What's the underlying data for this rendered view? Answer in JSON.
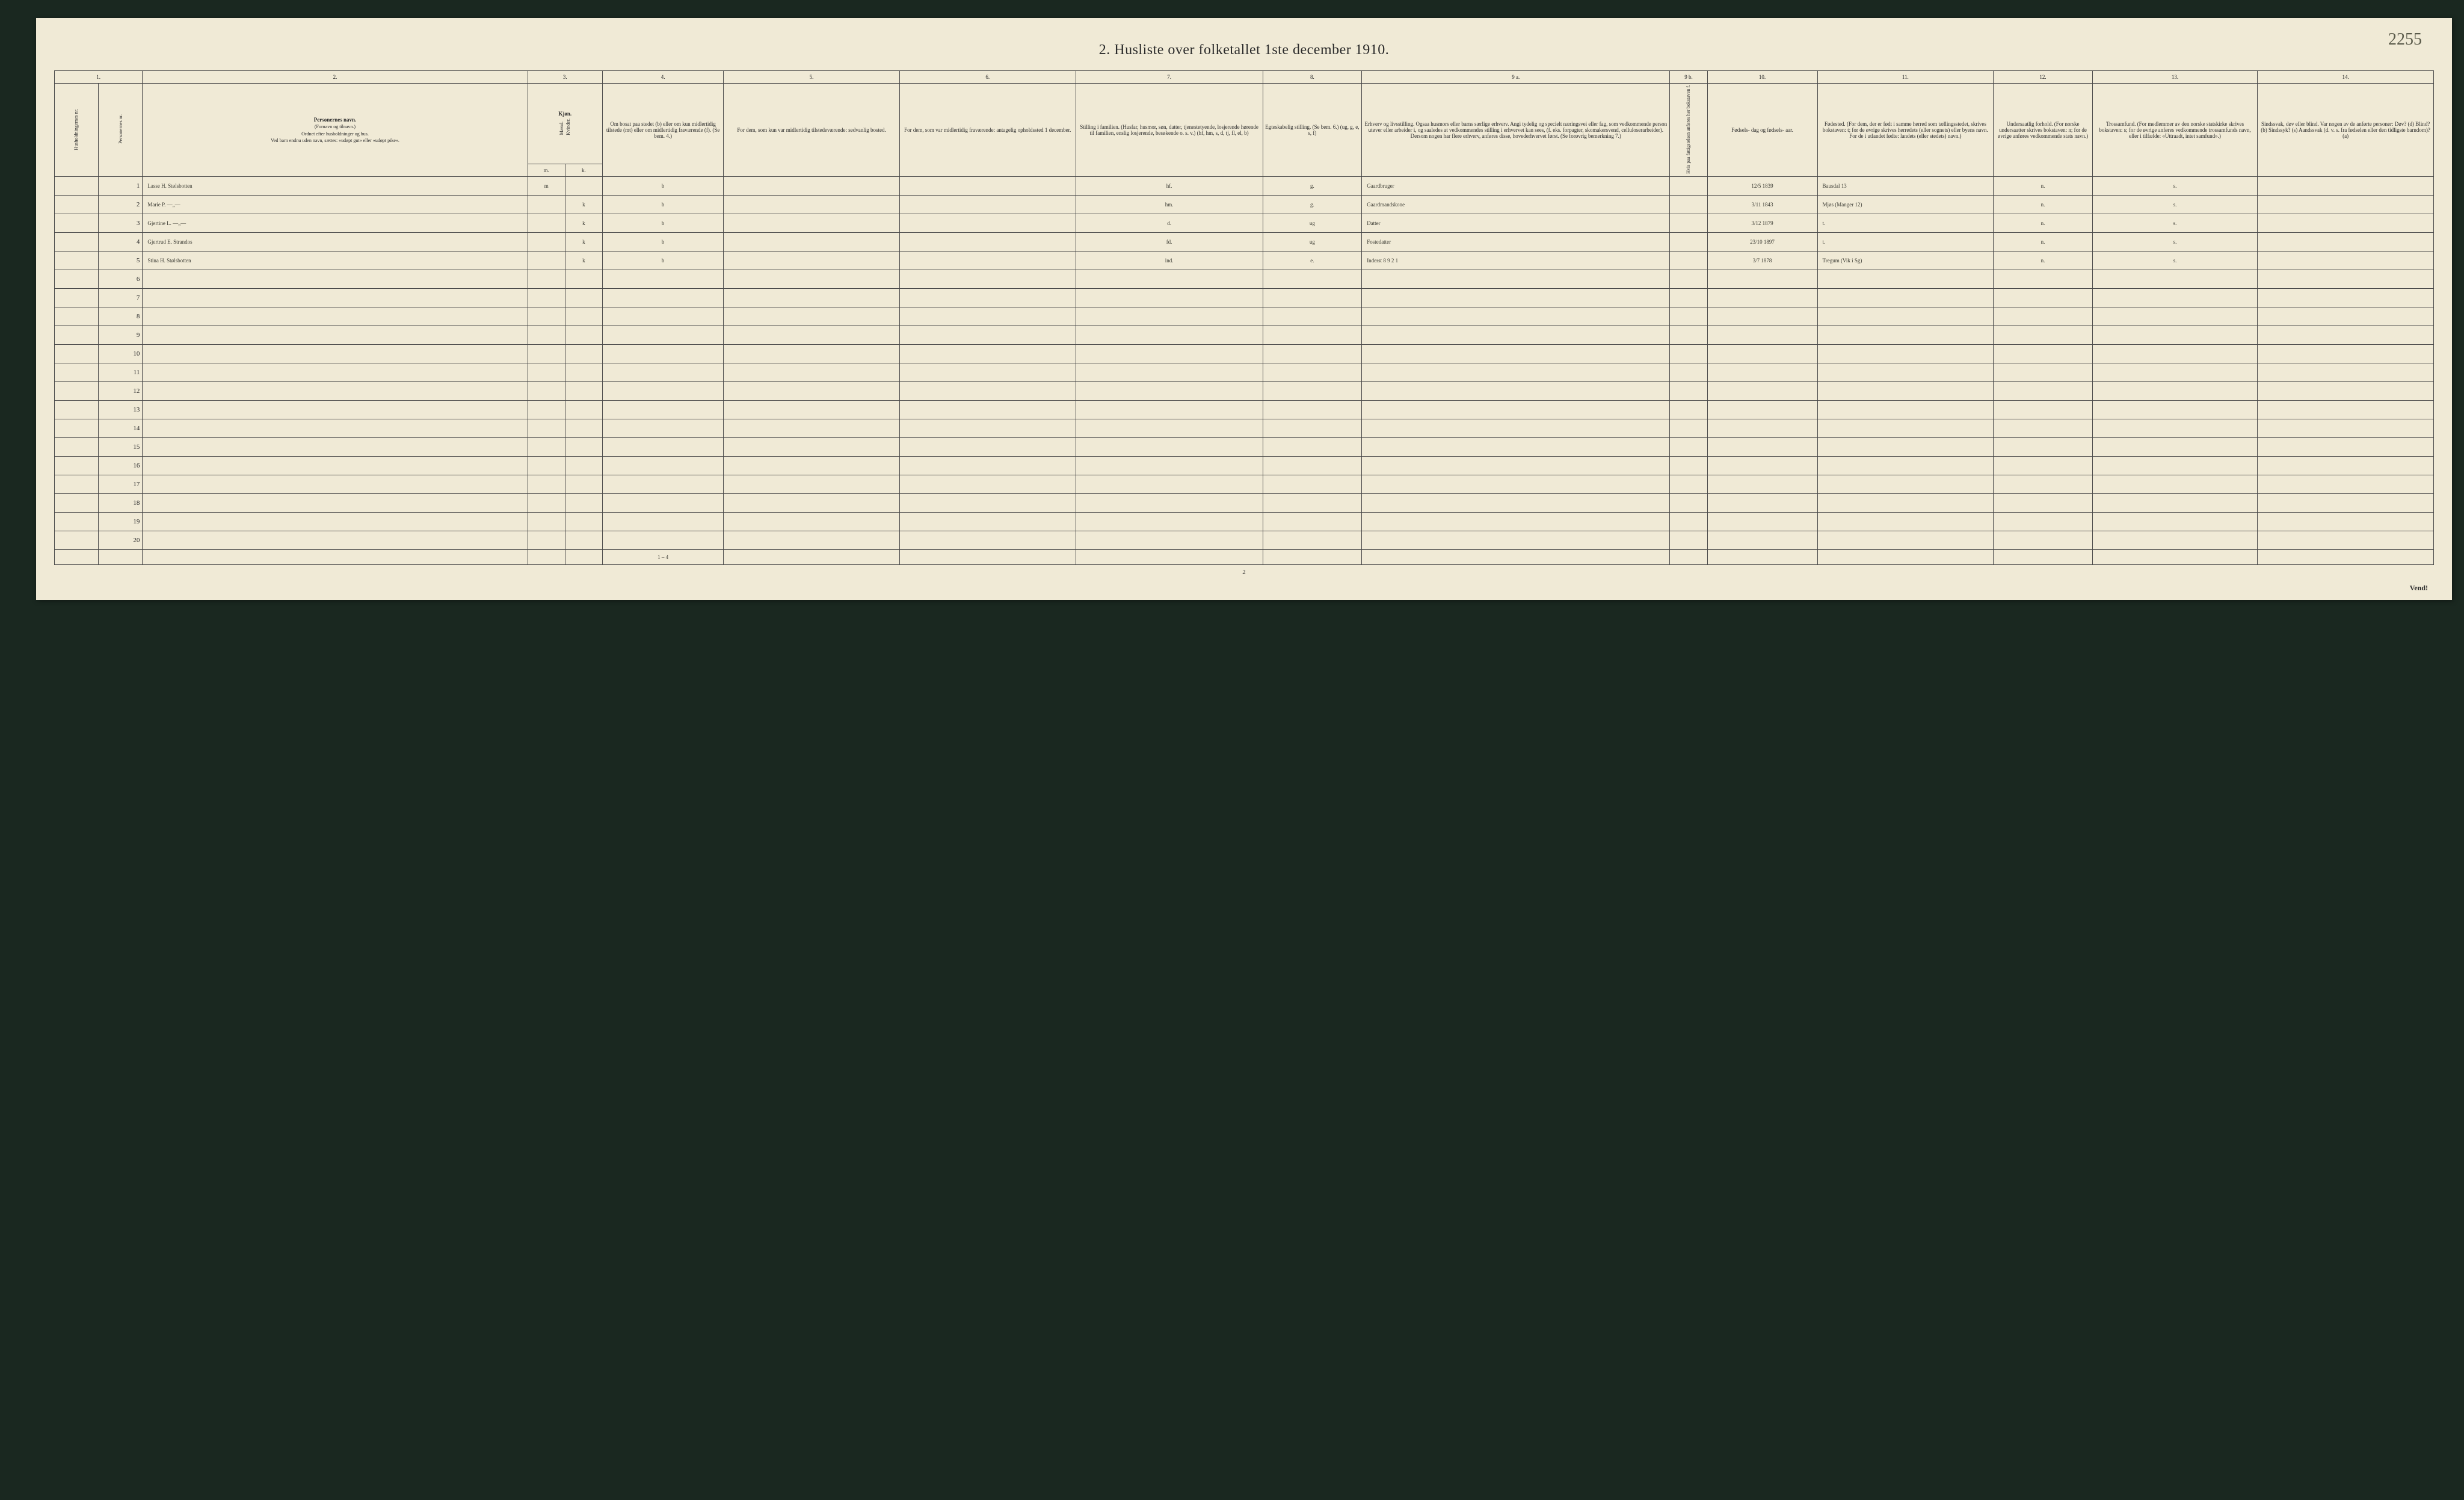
{
  "title": "2.  Husliste over folketallet 1ste december 1910.",
  "corner_note": "2255",
  "page_number": "2",
  "vend": "Vend!",
  "colnums": [
    "1.",
    "2.",
    "3.",
    "4.",
    "5.",
    "6.",
    "7.",
    "8.",
    "9 a.",
    "9 b.",
    "10.",
    "11.",
    "12.",
    "13.",
    "14."
  ],
  "headers": {
    "c1a": "Husholdningernes nr.",
    "c1b": "Personernes nr.",
    "c2_title": "Personernes navn.",
    "c2_sub1": "(Fornavn og tilnavn.)",
    "c2_sub2": "Ordnet efter husholdninger og hus.",
    "c2_sub3": "Ved barn endnu uden navn, sættes: «udøpt gut» eller «udøpt pike».",
    "c3_title": "Kjøn.",
    "c3_sub": "Mænd. | Kvinder.",
    "c3_mk_m": "m.",
    "c3_mk_k": "k.",
    "c4": "Om bosat paa stedet (b) eller om kun midlertidig tilstede (mt) eller om midlertidig fraværende (f). (Se bem. 4.)",
    "c5": "For dem, som kun var midlertidig tilstedeværende: sedvanlig bosted.",
    "c6": "For dem, som var midlertidig fraværende: antagelig opholdssted 1 december.",
    "c7": "Stilling i familien. (Husfar, husmor, søn, datter, tjenestetyende, losjerende hørende til familien, enslig losjerende, besøkende o. s. v.) (hf, hm, s, d, tj, fl, el, b)",
    "c8": "Egteskabelig stilling. (Se bem. 6.) (ug, g, e, s, f)",
    "c9a": "Erhverv og livsstilling. Ogsaa husmors eller barns særlige erhverv. Angi tydelig og specielt næringsvei eller fag, som vedkommende person utøver eller arbeider i, og saaledes at vedkommendes stilling i erhvervet kan sees, (f. eks. forpagter, skomakersvend, celluloserarbeider). Dersom nogen har flere erhverv, anføres disse, hovederhvervet først. (Se forøvrig bemerkning 7.)",
    "c9b": "Hvis paa fattigstelsen anføres her bokstaven f.",
    "c10": "Fødsels- dag og fødsels- aar.",
    "c11": "Fødested. (For dem, der er født i samme herred som tællingsstedet, skrives bokstaven: t; for de øvrige skrives herredets (eller sognets) eller byens navn. For de i utlandet fødte: landets (eller stedets) navn.)",
    "c12": "Undersaatlig forhold. (For norske undersaatter skrives bokstaven: n; for de øvrige anføres vedkommende stats navn.)",
    "c13": "Trossamfund. (For medlemmer av den norske statskirke skrives bokstaven: s; for de øvrige anføres vedkommende trossamfunds navn, eller i tilfælde: «Uttraadt, intet samfund».)",
    "c14": "Sindssvak, døv eller blind. Var nogen av de anførte personer: Døv? (d) Blind? (b) Sindssyk? (s) Aandssvak (d. v. s. fra fødselen eller den tidligste barndom)? (a)"
  },
  "rows": [
    {
      "num": "1",
      "name": "Lasse H. Stølsbotten",
      "sex_m": "m",
      "sex_k": "",
      "c4": "b",
      "c5": "",
      "c6": "",
      "c7": "hf.",
      "c8": "g.",
      "c9a": "Gaardbruger",
      "c9b": "",
      "c10": "12/5 1839",
      "c11": "Bausdal 13",
      "c12": "n.",
      "c13": "s.",
      "c14": ""
    },
    {
      "num": "2",
      "name": "Marie P.      —„—",
      "sex_m": "",
      "sex_k": "k",
      "c4": "b",
      "c5": "",
      "c6": "",
      "c7": "hm.",
      "c8": "g.",
      "c9a": "Gaardmandskone",
      "c9b": "",
      "c10": "3/11 1843",
      "c11": "Mjøs (Manger 12)",
      "c12": "n.",
      "c13": "s.",
      "c14": ""
    },
    {
      "num": "3",
      "name": "Gjertine L.   —„—",
      "sex_m": "",
      "sex_k": "k",
      "c4": "b",
      "c5": "",
      "c6": "",
      "c7": "d.",
      "c8": "ug",
      "c9a": "Datter",
      "c9b": "",
      "c10": "3/12 1879",
      "c11": "t.",
      "c12": "n.",
      "c13": "s.",
      "c14": ""
    },
    {
      "num": "4",
      "name": "Gjertrud E. Strandos",
      "sex_m": "",
      "sex_k": "k",
      "c4": "b",
      "c5": "",
      "c6": "",
      "c7": "fd.",
      "c8": "ug",
      "c9a": "Fostedatter",
      "c9b": "",
      "c10": "23/10 1897",
      "c11": "t.",
      "c12": "n.",
      "c13": "s.",
      "c14": ""
    },
    {
      "num": "5",
      "name": "Stina H. Stølsbotten",
      "sex_m": "",
      "sex_k": "k",
      "c4": "b",
      "c5": "",
      "c6": "",
      "c7": "ind.",
      "c8": "e.",
      "c9a": "Inderst   8 9 2 1",
      "c9b": "",
      "c10": "3/7 1878",
      "c11": "Tregum (Vik i Sg)",
      "c12": "n.",
      "c13": "s.",
      "c14": ""
    },
    {
      "num": "6"
    },
    {
      "num": "7"
    },
    {
      "num": "8"
    },
    {
      "num": "9"
    },
    {
      "num": "10"
    },
    {
      "num": "11"
    },
    {
      "num": "12"
    },
    {
      "num": "13"
    },
    {
      "num": "14"
    },
    {
      "num": "15"
    },
    {
      "num": "16"
    },
    {
      "num": "17"
    },
    {
      "num": "18"
    },
    {
      "num": "19"
    },
    {
      "num": "20"
    }
  ],
  "footer_note": "1 – 4",
  "col_widths_pct": [
    2.0,
    2.0,
    17.5,
    1.7,
    1.7,
    5.5,
    8.0,
    8.0,
    8.5,
    4.5,
    14.0,
    1.7,
    5.0,
    8.0,
    4.5,
    7.5,
    8.0
  ]
}
